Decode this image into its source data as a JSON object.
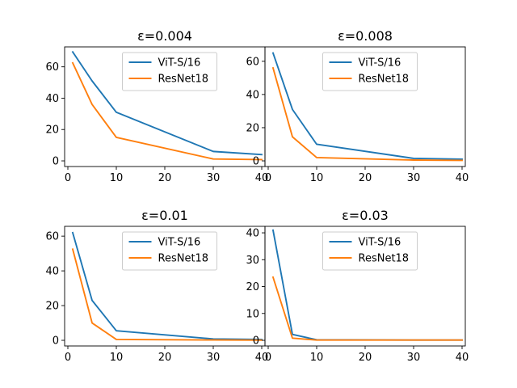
{
  "figure": {
    "background": "#ffffff"
  },
  "chart_data": [
    {
      "type": "line",
      "title": "ε=0.004",
      "xlabel": "",
      "ylabel": "",
      "x": [
        1,
        5,
        10,
        30,
        40
      ],
      "xlim": [
        0,
        40
      ],
      "ylim": [
        0,
        72
      ],
      "xticks": [
        0,
        10,
        20,
        30,
        40
      ],
      "xtick_labels": [
        "0",
        "10",
        "20",
        "30",
        "40"
      ],
      "yticks": [
        0,
        20,
        40,
        60
      ],
      "ytick_labels": [
        "0",
        "20",
        "40",
        "60"
      ],
      "legend_position": "upper-center",
      "series": [
        {
          "name": "ViT-S/16",
          "color": "#1f77b4",
          "values": [
            69.5,
            51,
            31,
            6,
            4
          ]
        },
        {
          "name": "ResNet18",
          "color": "#ff7f0e",
          "values": [
            62.5,
            36,
            15,
            1.2,
            0.8
          ]
        }
      ]
    },
    {
      "type": "line",
      "title": "ε=0.008",
      "xlabel": "",
      "ylabel": "",
      "x": [
        1,
        5,
        10,
        30,
        40
      ],
      "xlim": [
        0,
        40
      ],
      "ylim": [
        0,
        68
      ],
      "xticks": [
        0,
        10,
        20,
        30,
        40
      ],
      "xtick_labels": [
        "0",
        "10",
        "20",
        "30",
        "40"
      ],
      "yticks": [
        0,
        20,
        40,
        60
      ],
      "ytick_labels": [
        "0",
        "20",
        "40",
        "60"
      ],
      "legend_position": "upper-center",
      "series": [
        {
          "name": "ViT-S/16",
          "color": "#1f77b4",
          "values": [
            65,
            31,
            10,
            1.5,
            1
          ]
        },
        {
          "name": "ResNet18",
          "color": "#ff7f0e",
          "values": [
            56,
            14.5,
            2,
            0.5,
            0.3
          ]
        }
      ]
    },
    {
      "type": "line",
      "title": "ε=0.01",
      "xlabel": "",
      "ylabel": "",
      "x": [
        1,
        5,
        10,
        30,
        40
      ],
      "xlim": [
        0,
        40
      ],
      "ylim": [
        0,
        65
      ],
      "xticks": [
        0,
        10,
        20,
        30,
        40
      ],
      "xtick_labels": [
        "0",
        "10",
        "20",
        "30",
        "40"
      ],
      "yticks": [
        0,
        20,
        40,
        60
      ],
      "ytick_labels": [
        "0",
        "20",
        "40",
        "60"
      ],
      "legend_position": "upper-center",
      "series": [
        {
          "name": "ViT-S/16",
          "color": "#1f77b4",
          "values": [
            62,
            23,
            5.5,
            0.8,
            0.5
          ]
        },
        {
          "name": "ResNet18",
          "color": "#ff7f0e",
          "values": [
            52.5,
            10,
            0.5,
            0.2,
            0.1
          ]
        }
      ]
    },
    {
      "type": "line",
      "title": "ε=0.03",
      "xlabel": "",
      "ylabel": "",
      "x": [
        1,
        5,
        10,
        30,
        40
      ],
      "xlim": [
        0,
        40
      ],
      "ylim": [
        0,
        42
      ],
      "xticks": [
        0,
        10,
        20,
        30,
        40
      ],
      "xtick_labels": [
        "0",
        "10",
        "20",
        "30",
        "40"
      ],
      "yticks": [
        0,
        10,
        20,
        30,
        40
      ],
      "ytick_labels": [
        "0",
        "10",
        "20",
        "30",
        "40"
      ],
      "legend_position": "upper-center",
      "series": [
        {
          "name": "ViT-S/16",
          "color": "#1f77b4",
          "values": [
            41,
            2.2,
            0.2,
            0.1,
            0.1
          ]
        },
        {
          "name": "ResNet18",
          "color": "#ff7f0e",
          "values": [
            23.5,
            0.8,
            0.1,
            0.1,
            0.1
          ]
        }
      ]
    }
  ]
}
